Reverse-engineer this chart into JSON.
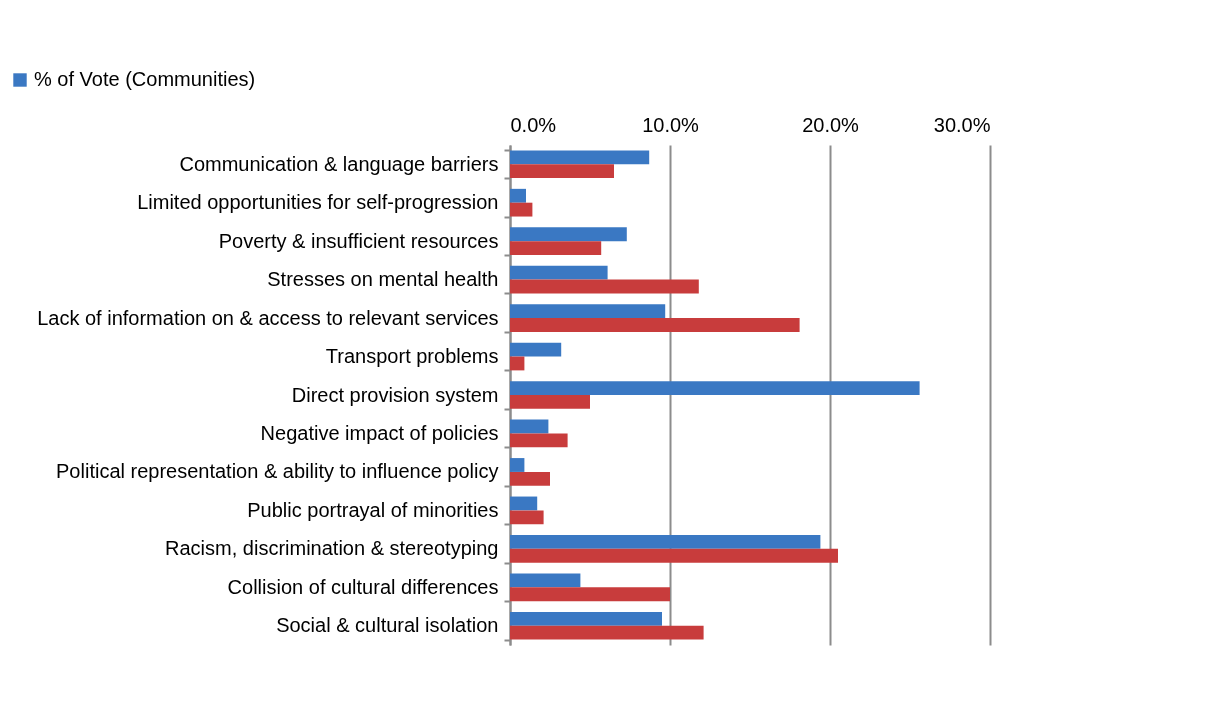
{
  "chart_data": {
    "type": "bar",
    "orientation": "horizontal",
    "categories": [
      "Communication & language barriers",
      "Limited opportunities for self-progression",
      "Poverty & insufficient resources",
      "Stresses on mental health",
      "Lack of information on & access to relevant services",
      "Transport problems",
      "Direct provision system",
      "Negative impact of policies",
      "Political representation & ability to influence policy",
      "Public portrayal of minorities",
      "Racism, discrimination & stereotyping",
      "Collision of cultural differences",
      "Social & cultural isolation"
    ],
    "series": [
      {
        "name": "% of Vote (Communities)",
        "color": "#3a78c3",
        "values": [
          8.7,
          1.0,
          7.3,
          6.1,
          9.7,
          3.2,
          25.6,
          2.4,
          0.9,
          1.7,
          19.4,
          4.4,
          9.5
        ]
      },
      {
        "color": "#c83c3c",
        "values": [
          6.5,
          1.4,
          5.7,
          11.8,
          18.1,
          0.9,
          5.0,
          3.6,
          2.5,
          2.1,
          20.5,
          10.0,
          12.1
        ]
      }
    ],
    "xlim": [
      0,
      30
    ],
    "xticks": [
      {
        "value": 0,
        "label": "0.0%"
      },
      {
        "value": 10,
        "label": "10.0%"
      },
      {
        "value": 20,
        "label": "20.0%"
      },
      {
        "value": 30,
        "label": "30.0%"
      }
    ],
    "grid": "x",
    "legend": "top left"
  }
}
